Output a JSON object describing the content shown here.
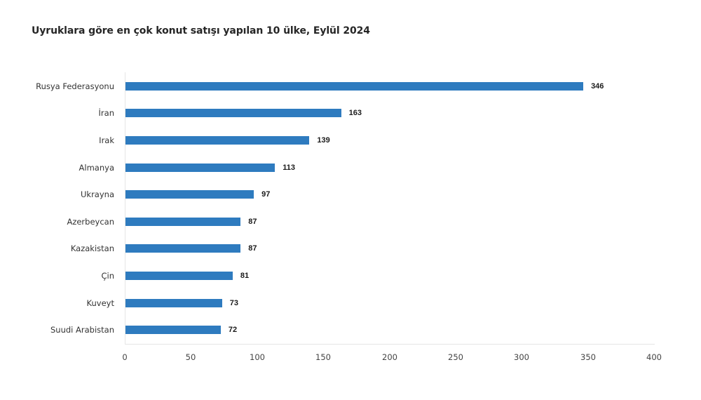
{
  "chart_data": {
    "type": "bar",
    "orientation": "horizontal",
    "title": "Uyruklara göre en çok konut satışı yapılan 10 ülke, Eylül 2024",
    "categories": [
      "Rusya Federasyonu",
      "İran",
      "Irak",
      "Almanya",
      "Ukrayna",
      "Azerbeycan",
      "Kazakistan",
      "Çin",
      "Kuveyt",
      "Suudi Arabistan"
    ],
    "values": [
      346,
      163,
      139,
      113,
      97,
      87,
      87,
      81,
      73,
      72
    ],
    "value_labels": [
      "346",
      "163",
      "139",
      "113",
      "97",
      "87",
      "87",
      "81",
      "73",
      "72"
    ],
    "xlabel": "",
    "ylabel": "",
    "xlim": [
      0,
      400
    ],
    "x_ticks": [
      "0",
      "50",
      "100",
      "150",
      "200",
      "250",
      "300",
      "350",
      "400"
    ],
    "grid": false,
    "legend": null,
    "bar_color": "#2e7bbf"
  }
}
